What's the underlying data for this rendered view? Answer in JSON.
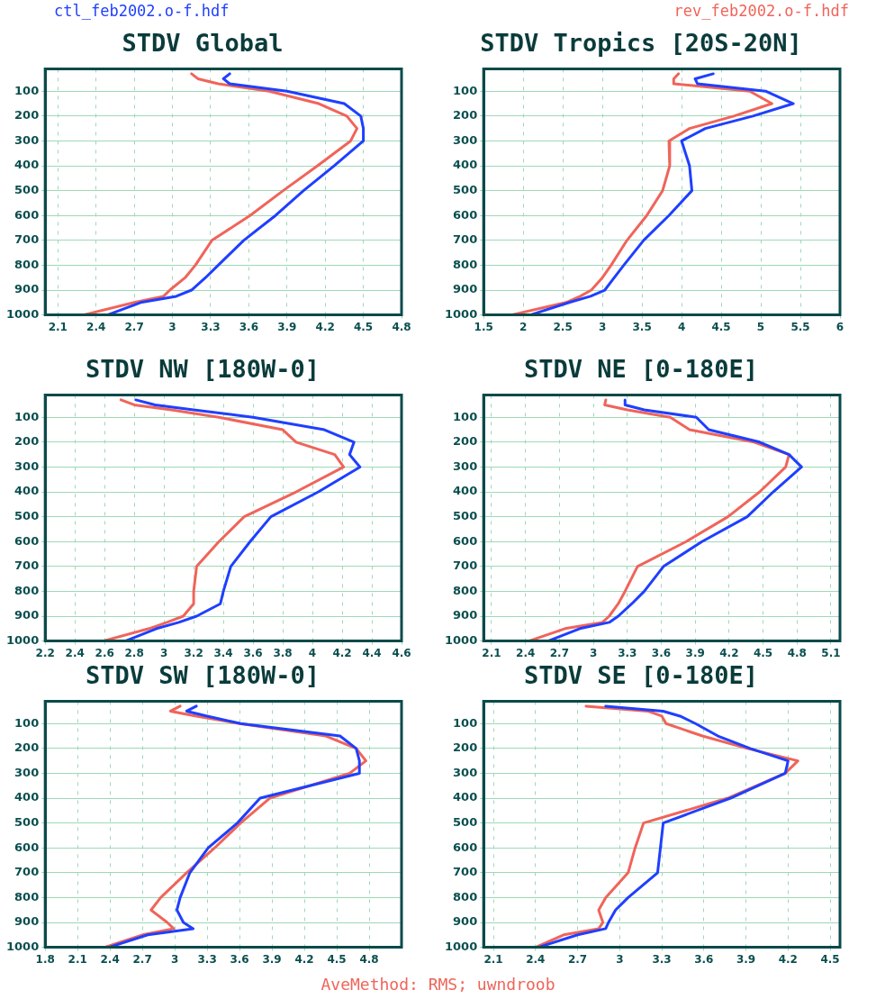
{
  "chart_data": [
    {
      "type": "line",
      "title": "STDV Global",
      "legend": "top",
      "grid": true,
      "marker": "none",
      "line_style": "solid",
      "xlim": [
        2,
        4.8
      ],
      "xticks": [
        2.1,
        2.4,
        2.7,
        3,
        3.3,
        3.6,
        3.9,
        4.2,
        4.5,
        4.8
      ],
      "ylim": [
        1000,
        10
      ],
      "yticks": [
        100,
        200,
        300,
        400,
        500,
        600,
        700,
        800,
        900,
        1000
      ],
      "series": [
        {
          "name": "ctl_feb2002.o-f.hdf",
          "color": "#1f3fff",
          "x": [
            3.45,
            3.4,
            3.45,
            3.9,
            4.35,
            4.48,
            4.5,
            4.5,
            4.27,
            4.03,
            3.81,
            3.56,
            3.36,
            3.26,
            3.15,
            3.03,
            2.75,
            2.49
          ],
          "values": [
            30,
            50,
            70,
            100,
            150,
            200,
            250,
            300,
            400,
            500,
            600,
            700,
            800,
            850,
            900,
            925,
            950,
            1000
          ]
        },
        {
          "name": "rev_feb2002.o-f.hdf",
          "color": "#f0645a",
          "x": [
            3.15,
            3.2,
            3.36,
            3.76,
            4.15,
            4.37,
            4.45,
            4.4,
            4.14,
            3.87,
            3.61,
            3.31,
            3.18,
            3.1,
            2.98,
            2.93,
            2.7,
            2.3
          ],
          "values": [
            30,
            50,
            70,
            100,
            150,
            200,
            250,
            300,
            400,
            500,
            600,
            700,
            800,
            850,
            900,
            925,
            950,
            1000
          ]
        }
      ]
    },
    {
      "type": "line",
      "title": "STDV Tropics [20S-20N]",
      "grid": true,
      "marker": "none",
      "line_style": "solid",
      "xlim": [
        1.5,
        6
      ],
      "xticks": [
        1.5,
        2,
        2.5,
        3,
        3.5,
        4,
        4.5,
        5,
        5.5,
        6
      ],
      "ylim": [
        1000,
        10
      ],
      "yticks": [
        100,
        200,
        300,
        400,
        500,
        600,
        700,
        800,
        900,
        1000
      ],
      "series": [
        {
          "color": "#1f3fff",
          "x": [
            4.4,
            4.17,
            4.2,
            5.06,
            5.41,
            4.9,
            4.3,
            4.0,
            4.1,
            4.13,
            3.84,
            3.52,
            3.27,
            3.15,
            3.03,
            2.85,
            2.58,
            2.09
          ],
          "values": [
            30,
            50,
            70,
            100,
            150,
            200,
            250,
            300,
            400,
            500,
            600,
            700,
            800,
            850,
            900,
            925,
            950,
            1000
          ]
        },
        {
          "color": "#f0645a",
          "x": [
            3.96,
            3.9,
            3.9,
            4.86,
            5.14,
            4.66,
            4.1,
            3.84,
            3.85,
            3.76,
            3.56,
            3.31,
            3.11,
            3.0,
            2.86,
            2.72,
            2.54,
            1.85
          ],
          "values": [
            30,
            50,
            70,
            100,
            150,
            200,
            250,
            300,
            400,
            500,
            600,
            700,
            800,
            850,
            900,
            925,
            950,
            1000
          ]
        }
      ]
    },
    {
      "type": "line",
      "title": "STDV NW [180W-0]",
      "grid": true,
      "marker": "none",
      "line_style": "solid",
      "xlim": [
        2.2,
        4.6
      ],
      "xticks": [
        2.2,
        2.4,
        2.6,
        2.8,
        3,
        3.2,
        3.4,
        3.6,
        3.8,
        4,
        4.2,
        4.4,
        4.6
      ],
      "ylim": [
        1000,
        10
      ],
      "yticks": [
        100,
        200,
        300,
        400,
        500,
        600,
        700,
        800,
        900,
        1000
      ],
      "series": [
        {
          "color": "#1f3fff",
          "x": [
            2.81,
            2.94,
            3.2,
            3.6,
            4.08,
            4.28,
            4.25,
            4.32,
            4.04,
            3.72,
            3.58,
            3.45,
            3.4,
            3.38,
            3.22,
            3.1,
            2.95,
            2.74
          ],
          "values": [
            30,
            50,
            70,
            100,
            150,
            200,
            250,
            300,
            400,
            500,
            600,
            700,
            800,
            850,
            900,
            925,
            950,
            1000
          ]
        },
        {
          "color": "#f0645a",
          "x": [
            2.71,
            2.8,
            3.05,
            3.37,
            3.8,
            3.89,
            4.15,
            4.21,
            3.89,
            3.54,
            3.37,
            3.22,
            3.2,
            3.2,
            3.13,
            3.02,
            2.9,
            2.59
          ],
          "values": [
            30,
            50,
            70,
            100,
            150,
            200,
            250,
            300,
            400,
            500,
            600,
            700,
            800,
            850,
            900,
            925,
            950,
            1000
          ]
        }
      ]
    },
    {
      "type": "line",
      "title": "STDV NE [0-180E]",
      "grid": true,
      "marker": "none",
      "line_style": "solid",
      "xlim": [
        2.03,
        5.18
      ],
      "xticks": [
        2.1,
        2.4,
        2.7,
        3,
        3.3,
        3.6,
        3.9,
        4.2,
        4.5,
        4.8,
        5.1
      ],
      "ylim": [
        1000,
        10
      ],
      "yticks": [
        100,
        200,
        300,
        400,
        500,
        600,
        700,
        800,
        900,
        1000
      ],
      "series": [
        {
          "color": "#1f3fff",
          "x": [
            3.28,
            3.28,
            3.45,
            3.91,
            4.02,
            4.47,
            4.73,
            4.84,
            4.59,
            4.36,
            3.96,
            3.62,
            3.45,
            3.34,
            3.22,
            3.14,
            2.88,
            2.6
          ],
          "values": [
            30,
            50,
            70,
            100,
            150,
            200,
            250,
            300,
            400,
            500,
            600,
            700,
            800,
            850,
            900,
            925,
            950,
            1000
          ]
        },
        {
          "color": "#f0645a",
          "x": [
            3.11,
            3.1,
            3.3,
            3.68,
            3.85,
            4.42,
            4.73,
            4.7,
            4.47,
            4.19,
            3.82,
            3.39,
            3.28,
            3.22,
            3.14,
            3.08,
            2.75,
            2.43
          ],
          "values": [
            30,
            50,
            70,
            100,
            150,
            200,
            250,
            300,
            400,
            500,
            600,
            700,
            800,
            850,
            900,
            925,
            950,
            1000
          ]
        }
      ]
    },
    {
      "type": "line",
      "title": "STDV SW [180W-0]",
      "grid": true,
      "marker": "none",
      "line_style": "solid",
      "xlim": [
        1.8,
        5.1
      ],
      "xticks": [
        1.8,
        2.1,
        2.4,
        2.7,
        3,
        3.3,
        3.6,
        3.9,
        4.2,
        4.5,
        4.8
      ],
      "ylim": [
        1000,
        10
      ],
      "yticks": [
        100,
        200,
        300,
        400,
        500,
        600,
        700,
        800,
        900,
        1000
      ],
      "series": [
        {
          "color": "#1f3fff",
          "x": [
            3.2,
            3.11,
            3.3,
            3.61,
            4.53,
            4.68,
            4.71,
            4.71,
            3.79,
            3.58,
            3.31,
            3.14,
            3.05,
            3.02,
            3.08,
            3.17,
            2.75,
            2.39
          ],
          "values": [
            30,
            50,
            70,
            100,
            150,
            200,
            250,
            300,
            400,
            500,
            600,
            700,
            800,
            850,
            900,
            925,
            950,
            1000
          ]
        },
        {
          "color": "#f0645a",
          "x": [
            3.05,
            2.96,
            3.2,
            3.6,
            4.4,
            4.68,
            4.77,
            4.62,
            3.88,
            3.61,
            3.37,
            3.11,
            2.87,
            2.78,
            2.93,
            2.99,
            2.7,
            2.35
          ],
          "values": [
            30,
            50,
            70,
            100,
            150,
            200,
            250,
            300,
            400,
            500,
            600,
            700,
            800,
            850,
            900,
            925,
            950,
            1000
          ]
        }
      ]
    },
    {
      "type": "line",
      "title": "STDV SE [0-180E]",
      "grid": true,
      "marker": "none",
      "line_style": "solid",
      "xlim": [
        2.03,
        4.57
      ],
      "xticks": [
        2.1,
        2.4,
        2.7,
        3,
        3.3,
        3.6,
        3.9,
        4.2,
        4.5
      ],
      "ylim": [
        1000,
        10
      ],
      "yticks": [
        100,
        200,
        300,
        400,
        500,
        600,
        700,
        800,
        900,
        1000
      ],
      "annotations": [
        "AveMethod: RMS; uwndroob"
      ],
      "series": [
        {
          "color": "#1f3fff",
          "x": [
            2.9,
            3.31,
            3.43,
            3.54,
            3.7,
            3.93,
            4.2,
            4.18,
            3.79,
            3.31,
            3.29,
            3.27,
            3.06,
            2.97,
            2.92,
            2.9,
            2.7,
            2.42
          ],
          "values": [
            30,
            50,
            70,
            100,
            150,
            200,
            250,
            300,
            400,
            500,
            600,
            700,
            800,
            850,
            900,
            925,
            950,
            1000
          ]
        },
        {
          "color": "#f0645a",
          "x": [
            2.76,
            3.2,
            3.3,
            3.33,
            3.59,
            3.91,
            4.27,
            4.18,
            3.77,
            3.17,
            3.11,
            3.06,
            2.9,
            2.85,
            2.88,
            2.85,
            2.6,
            2.4
          ],
          "values": [
            30,
            50,
            70,
            100,
            150,
            200,
            250,
            300,
            400,
            500,
            600,
            700,
            800,
            850,
            900,
            925,
            950,
            1000
          ]
        }
      ]
    }
  ]
}
